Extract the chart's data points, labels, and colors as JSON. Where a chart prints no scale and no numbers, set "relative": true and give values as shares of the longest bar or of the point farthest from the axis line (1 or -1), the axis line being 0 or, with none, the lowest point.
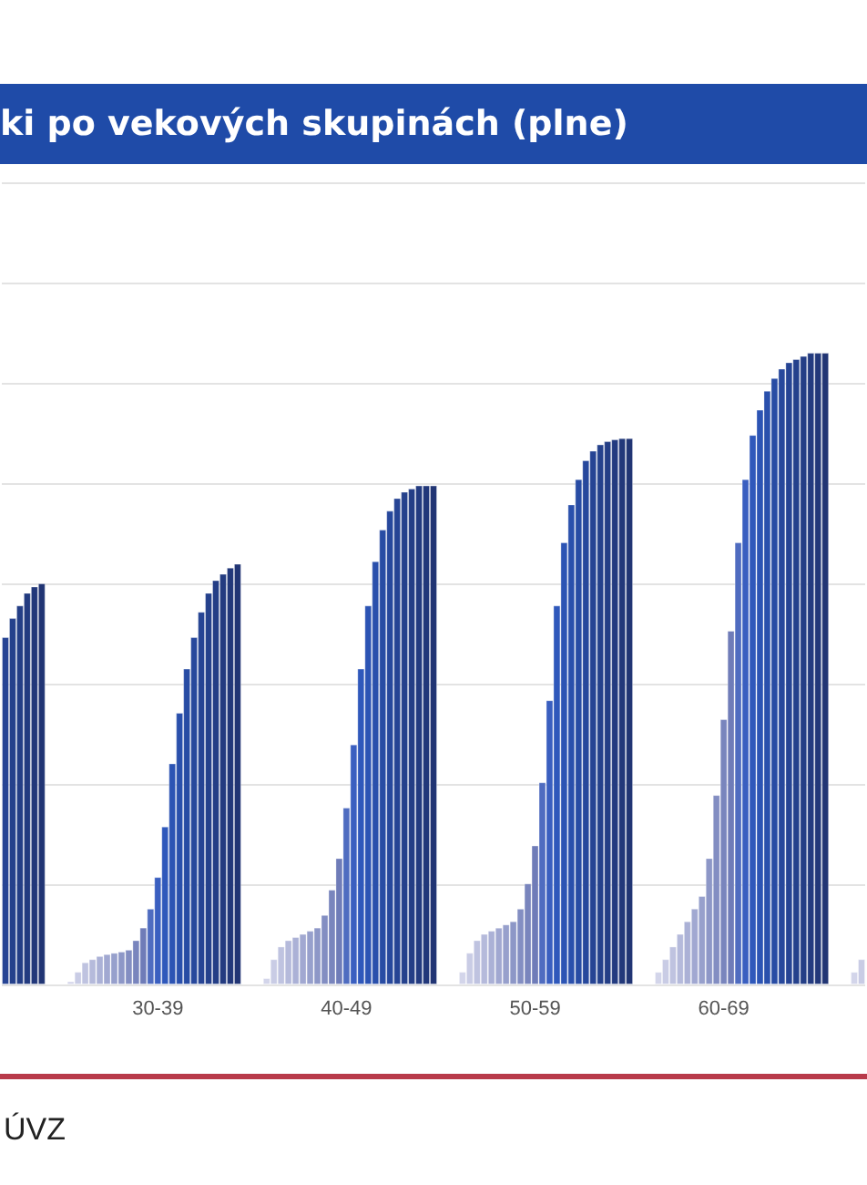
{
  "chart_data": {
    "type": "bar",
    "title": "ki po vekových skupinách (plne)",
    "relative": true,
    "grid": "y",
    "categories": [
      null,
      null,
      null,
      null,
      null,
      null,
      null,
      null,
      null,
      null,
      null,
      null,
      null,
      null,
      null,
      null,
      null,
      null,
      null,
      null,
      null,
      "30-39",
      null,
      null,
      null,
      null,
      null,
      null,
      null,
      null,
      null,
      null,
      null,
      null,
      null,
      null,
      null,
      null,
      null,
      null,
      null,
      null,
      null,
      null,
      null,
      null,
      null,
      "40-49",
      null,
      null,
      null,
      null,
      null,
      null,
      null,
      null,
      null,
      null,
      null,
      null,
      null,
      null,
      null,
      null,
      null,
      null,
      null,
      null,
      null,
      null,
      null,
      null,
      null,
      "50-59",
      null,
      null,
      null,
      null,
      null,
      null,
      null,
      null,
      null,
      null,
      null,
      null,
      null,
      null,
      null,
      null,
      null,
      null,
      null,
      null,
      null,
      null,
      null,
      null,
      null,
      "60-69",
      null,
      null,
      null,
      null,
      null,
      null,
      null,
      null,
      null,
      null,
      null,
      null,
      null,
      null,
      null,
      null,
      null,
      null,
      null
    ],
    "values": [
      0.55,
      0.58,
      0.6,
      0.62,
      0.63,
      0.635,
      null,
      null,
      null,
      0.005,
      0.02,
      0.035,
      0.04,
      0.045,
      0.048,
      0.05,
      0.052,
      0.055,
      0.07,
      0.09,
      0.12,
      0.17,
      0.25,
      0.35,
      0.43,
      0.5,
      0.55,
      0.59,
      0.62,
      0.64,
      0.65,
      0.66,
      0.666,
      null,
      null,
      null,
      0.01,
      0.04,
      0.06,
      0.07,
      0.075,
      0.08,
      0.085,
      0.09,
      0.11,
      0.15,
      0.2,
      0.28,
      0.38,
      0.5,
      0.6,
      0.67,
      0.72,
      0.75,
      0.77,
      0.78,
      0.785,
      0.79,
      0.79,
      0.79,
      null,
      null,
      null,
      0.02,
      0.05,
      0.07,
      0.08,
      0.085,
      0.09,
      0.095,
      0.1,
      0.12,
      0.16,
      0.22,
      0.32,
      0.45,
      0.6,
      0.7,
      0.76,
      0.8,
      0.83,
      0.845,
      0.855,
      0.86,
      0.863,
      0.865,
      0.865,
      null,
      null,
      null,
      0.02,
      0.04,
      0.06,
      0.08,
      0.1,
      0.12,
      0.14,
      0.2,
      0.3,
      0.42,
      0.56,
      0.7,
      0.8,
      0.87,
      0.91,
      0.94,
      0.96,
      0.975,
      0.985,
      0.99,
      0.995,
      1,
      1,
      1,
      null,
      null,
      null,
      0.02,
      0.04
    ],
    "colors": [
      "#264494",
      "#25418c",
      "#243e86",
      "#233b80",
      "#22387a",
      "#213574",
      null,
      null,
      null,
      "#d3d5ea",
      "#c9cce5",
      "#bfc3e0",
      "#b5badb",
      "#abb1d6",
      "#a1a8d1",
      "#97a0cc",
      "#8d97c7",
      "#838ec2",
      "#7985bd",
      "#6f7cb8",
      "#4f6cc0",
      "#3a5fc0",
      "#2f58bb",
      "#2c54b4",
      "#2a50ac",
      "#284ca4",
      "#27489c",
      "#264494",
      "#25418c",
      "#243e86",
      "#233b80",
      "#22387a",
      "#213574",
      null,
      null,
      null,
      "#d3d5ea",
      "#c9cce5",
      "#bfc3e0",
      "#b5badb",
      "#abb1d6",
      "#a1a8d1",
      "#97a0cc",
      "#8d97c7",
      "#838ec2",
      "#7985bd",
      "#6f7cb8",
      "#4f6cc0",
      "#3a5fc0",
      "#2f58bb",
      "#2c54b4",
      "#2a50ac",
      "#284ca4",
      "#27489c",
      "#264494",
      "#25418c",
      "#243e86",
      "#233b80",
      "#22387a",
      "#213574",
      null,
      null,
      null,
      "#d3d5ea",
      "#c9cce5",
      "#bfc3e0",
      "#b5badb",
      "#abb1d6",
      "#a1a8d1",
      "#97a0cc",
      "#8d97c7",
      "#838ec2",
      "#7985bd",
      "#6f7cb8",
      "#4f6cc0",
      "#3a5fc0",
      "#2f58bb",
      "#2c54b4",
      "#2a50ac",
      "#284ca4",
      "#27489c",
      "#264494",
      "#25418c",
      "#243e86",
      "#233b80",
      "#22387a",
      "#213574",
      null,
      null,
      null,
      "#d3d5ea",
      "#c9cce5",
      "#bfc3e0",
      "#b5badb",
      "#abb1d6",
      "#a1a8d1",
      "#97a0cc",
      "#8d97c7",
      "#838ec2",
      "#7985bd",
      "#6f7cb8",
      "#4f6cc0",
      "#3a5fc0",
      "#2f58bb",
      "#2c54b4",
      "#2a50ac",
      "#284ca4",
      "#27489c",
      "#264494",
      "#25418c",
      "#243e86",
      "#233b80",
      "#22387a",
      "#213574",
      null,
      null,
      null,
      "#d3d5ea",
      "#c9cce5"
    ],
    "annotations": [
      "ÚVZ"
    ]
  }
}
